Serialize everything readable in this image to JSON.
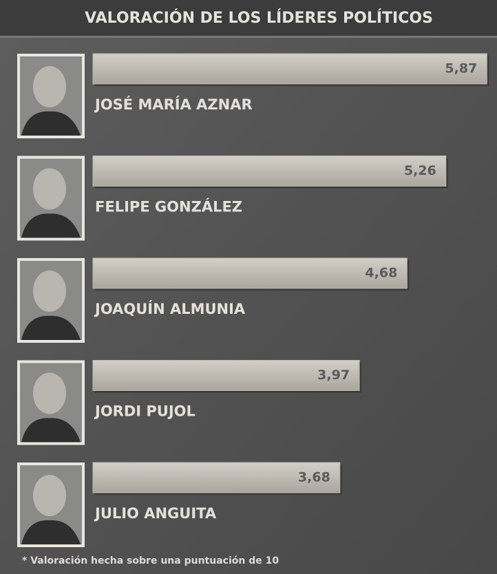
{
  "chart_data": {
    "type": "bar",
    "title": "VALORACIÓN DE LOS LÍDERES POLÍTICOS",
    "categories": [
      "JOSÉ MARÍA AZNAR",
      "FELIPE GONZÁLEZ",
      "JOAQUÍN ALMUNIA",
      "JORDI PUJOL",
      "JULIO ANGUITA"
    ],
    "values": [
      5.87,
      5.26,
      4.68,
      3.97,
      3.68
    ],
    "value_labels": [
      "5,87",
      "5,26",
      "4,68",
      "3,97",
      "3,68"
    ],
    "color": "#bdb9b1",
    "xlim": [
      0,
      6
    ],
    "footnote": "* Valoración hecha sobre una puntuación de 10"
  }
}
